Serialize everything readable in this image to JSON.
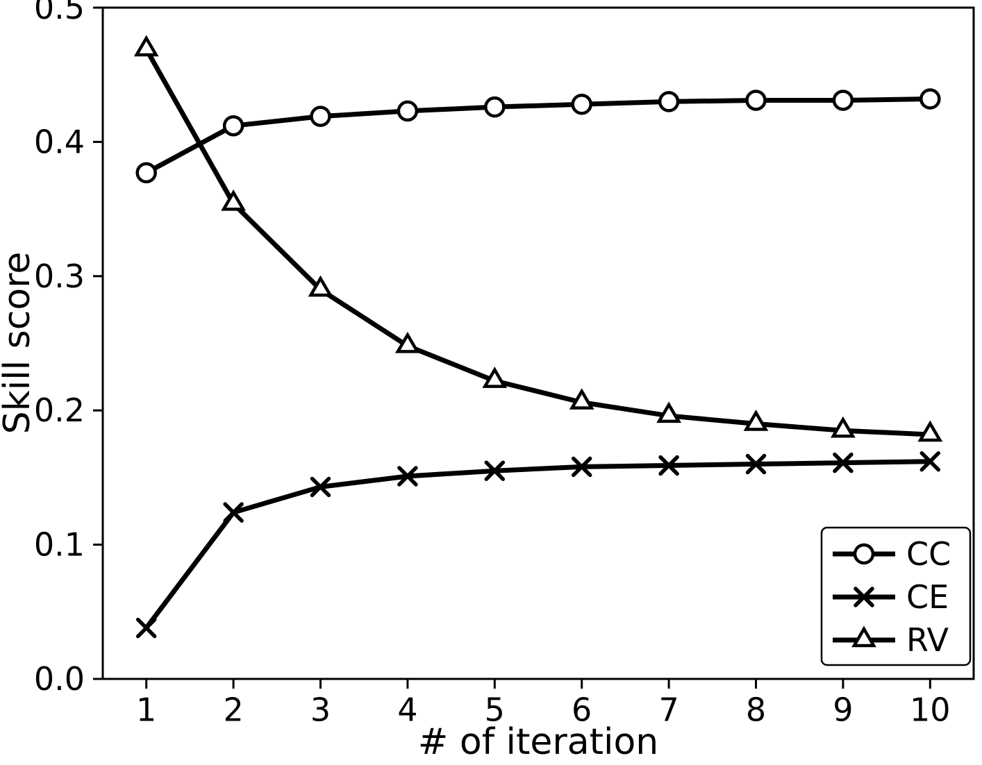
{
  "chart_data": {
    "type": "line",
    "title": "",
    "xlabel": "# of iteration",
    "ylabel": "Skill score",
    "x": [
      1,
      2,
      3,
      4,
      5,
      6,
      7,
      8,
      9,
      10
    ],
    "xlim": [
      0.5,
      10.5
    ],
    "ylim": [
      0.0,
      0.5
    ],
    "yticks": [
      0.0,
      0.1,
      0.2,
      0.3,
      0.4,
      0.5
    ],
    "grid": false,
    "legend_position": "lower right",
    "line_color": "#000000",
    "marker_fill": "#ffffff",
    "series": [
      {
        "name": "CC",
        "marker": "circle",
        "values": [
          0.377,
          0.412,
          0.419,
          0.423,
          0.426,
          0.428,
          0.43,
          0.431,
          0.431,
          0.432
        ]
      },
      {
        "name": "CE",
        "marker": "x",
        "values": [
          0.038,
          0.124,
          0.143,
          0.151,
          0.155,
          0.158,
          0.159,
          0.16,
          0.161,
          0.162
        ]
      },
      {
        "name": "RV",
        "marker": "triangle",
        "values": [
          0.469,
          0.354,
          0.29,
          0.248,
          0.222,
          0.206,
          0.196,
          0.19,
          0.185,
          0.182
        ]
      }
    ]
  }
}
